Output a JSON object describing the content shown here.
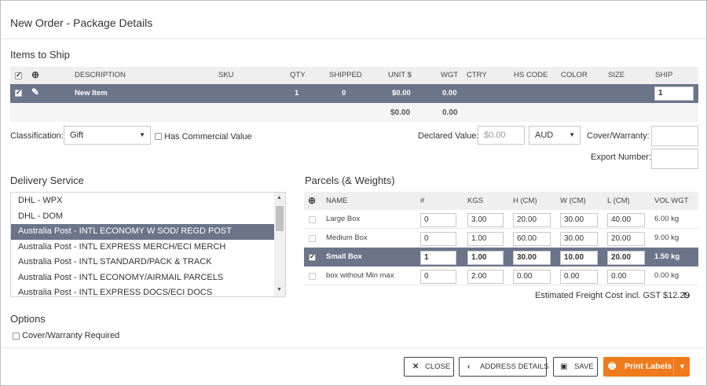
{
  "dialog": {
    "title": "New Order - Package Details"
  },
  "items": {
    "section_title": "Items to Ship",
    "columns": [
      "DESCRIPTION",
      "SKU",
      "QTY",
      "SHIPPED",
      "UNIT $",
      "WGT",
      "CTRY",
      "HS CODE",
      "COLOR",
      "SIZE",
      "SHIP"
    ],
    "row": {
      "description": "New Item",
      "sku": "",
      "qty": "1",
      "shipped": "0",
      "unit": "$0.00",
      "wgt": "0.00",
      "ship": "1"
    },
    "totals": {
      "unit": "$0.00",
      "wgt": "0.00"
    }
  },
  "form": {
    "classification_label": "Classification:",
    "classification_value": "Gift",
    "has_commercial_label": "Has Commercial Value",
    "declared_label": "Declared Value:",
    "declared_placeholder": "$0.00",
    "currency": "AUD",
    "cover_label": "Cover/Warranty:",
    "export_label": "Export Number:"
  },
  "delivery": {
    "section_title": "Delivery Service",
    "items": [
      "DHL - WPX",
      "DHL - DOM",
      "Australia Post - INTL ECONOMY W SOD/ REGD POST",
      "Australia Post - INTL EXPRESS MERCH/ECI MERCH",
      "Australia Post - INTL STANDARD/PACK & TRACK",
      "Australia Post - INTL ECONOMY/AIRMAIL PARCELS",
      "Australia Post - INTL EXPRESS DOCS/ECI DOCS"
    ],
    "selected_index": 2
  },
  "parcels": {
    "section_title": "Parcels (& Weights)",
    "columns": [
      "NAME",
      "#",
      "KGS",
      "H (CM)",
      "W (CM)",
      "L (CM)",
      "VOL WGT"
    ],
    "rows": [
      {
        "name": "Large Box",
        "count": "0",
        "kgs": "3.00",
        "h": "20.00",
        "w": "30.00",
        "l": "40.00",
        "vol": "6.00 kg",
        "checked": false
      },
      {
        "name": "Medium Box",
        "count": "0",
        "kgs": "1.00",
        "h": "60.00",
        "w": "30.00",
        "l": "20.00",
        "vol": "9.00 kg",
        "checked": false
      },
      {
        "name": "Small Box",
        "count": "1",
        "kgs": "1.00",
        "h": "30.00",
        "w": "10.00",
        "l": "20.00",
        "vol": "1.50 kg",
        "checked": true
      },
      {
        "name": "box without Min max",
        "count": "0",
        "kgs": "2.00",
        "h": "0.00",
        "w": "0.00",
        "l": "0.00",
        "vol": "0.00 kg",
        "checked": false
      }
    ],
    "freight": "Estimated Freight Cost incl. GST $12.29"
  },
  "options": {
    "section_title": "Options",
    "cover_required": "Cover/Warranty Required"
  },
  "footer": {
    "close": "CLOSE",
    "address": "ADDRESS DETAILS",
    "save": "SAVE",
    "print": "Print Labels"
  },
  "colors": {
    "selected_row": "#6b7489",
    "primary": "#f07b1d"
  }
}
